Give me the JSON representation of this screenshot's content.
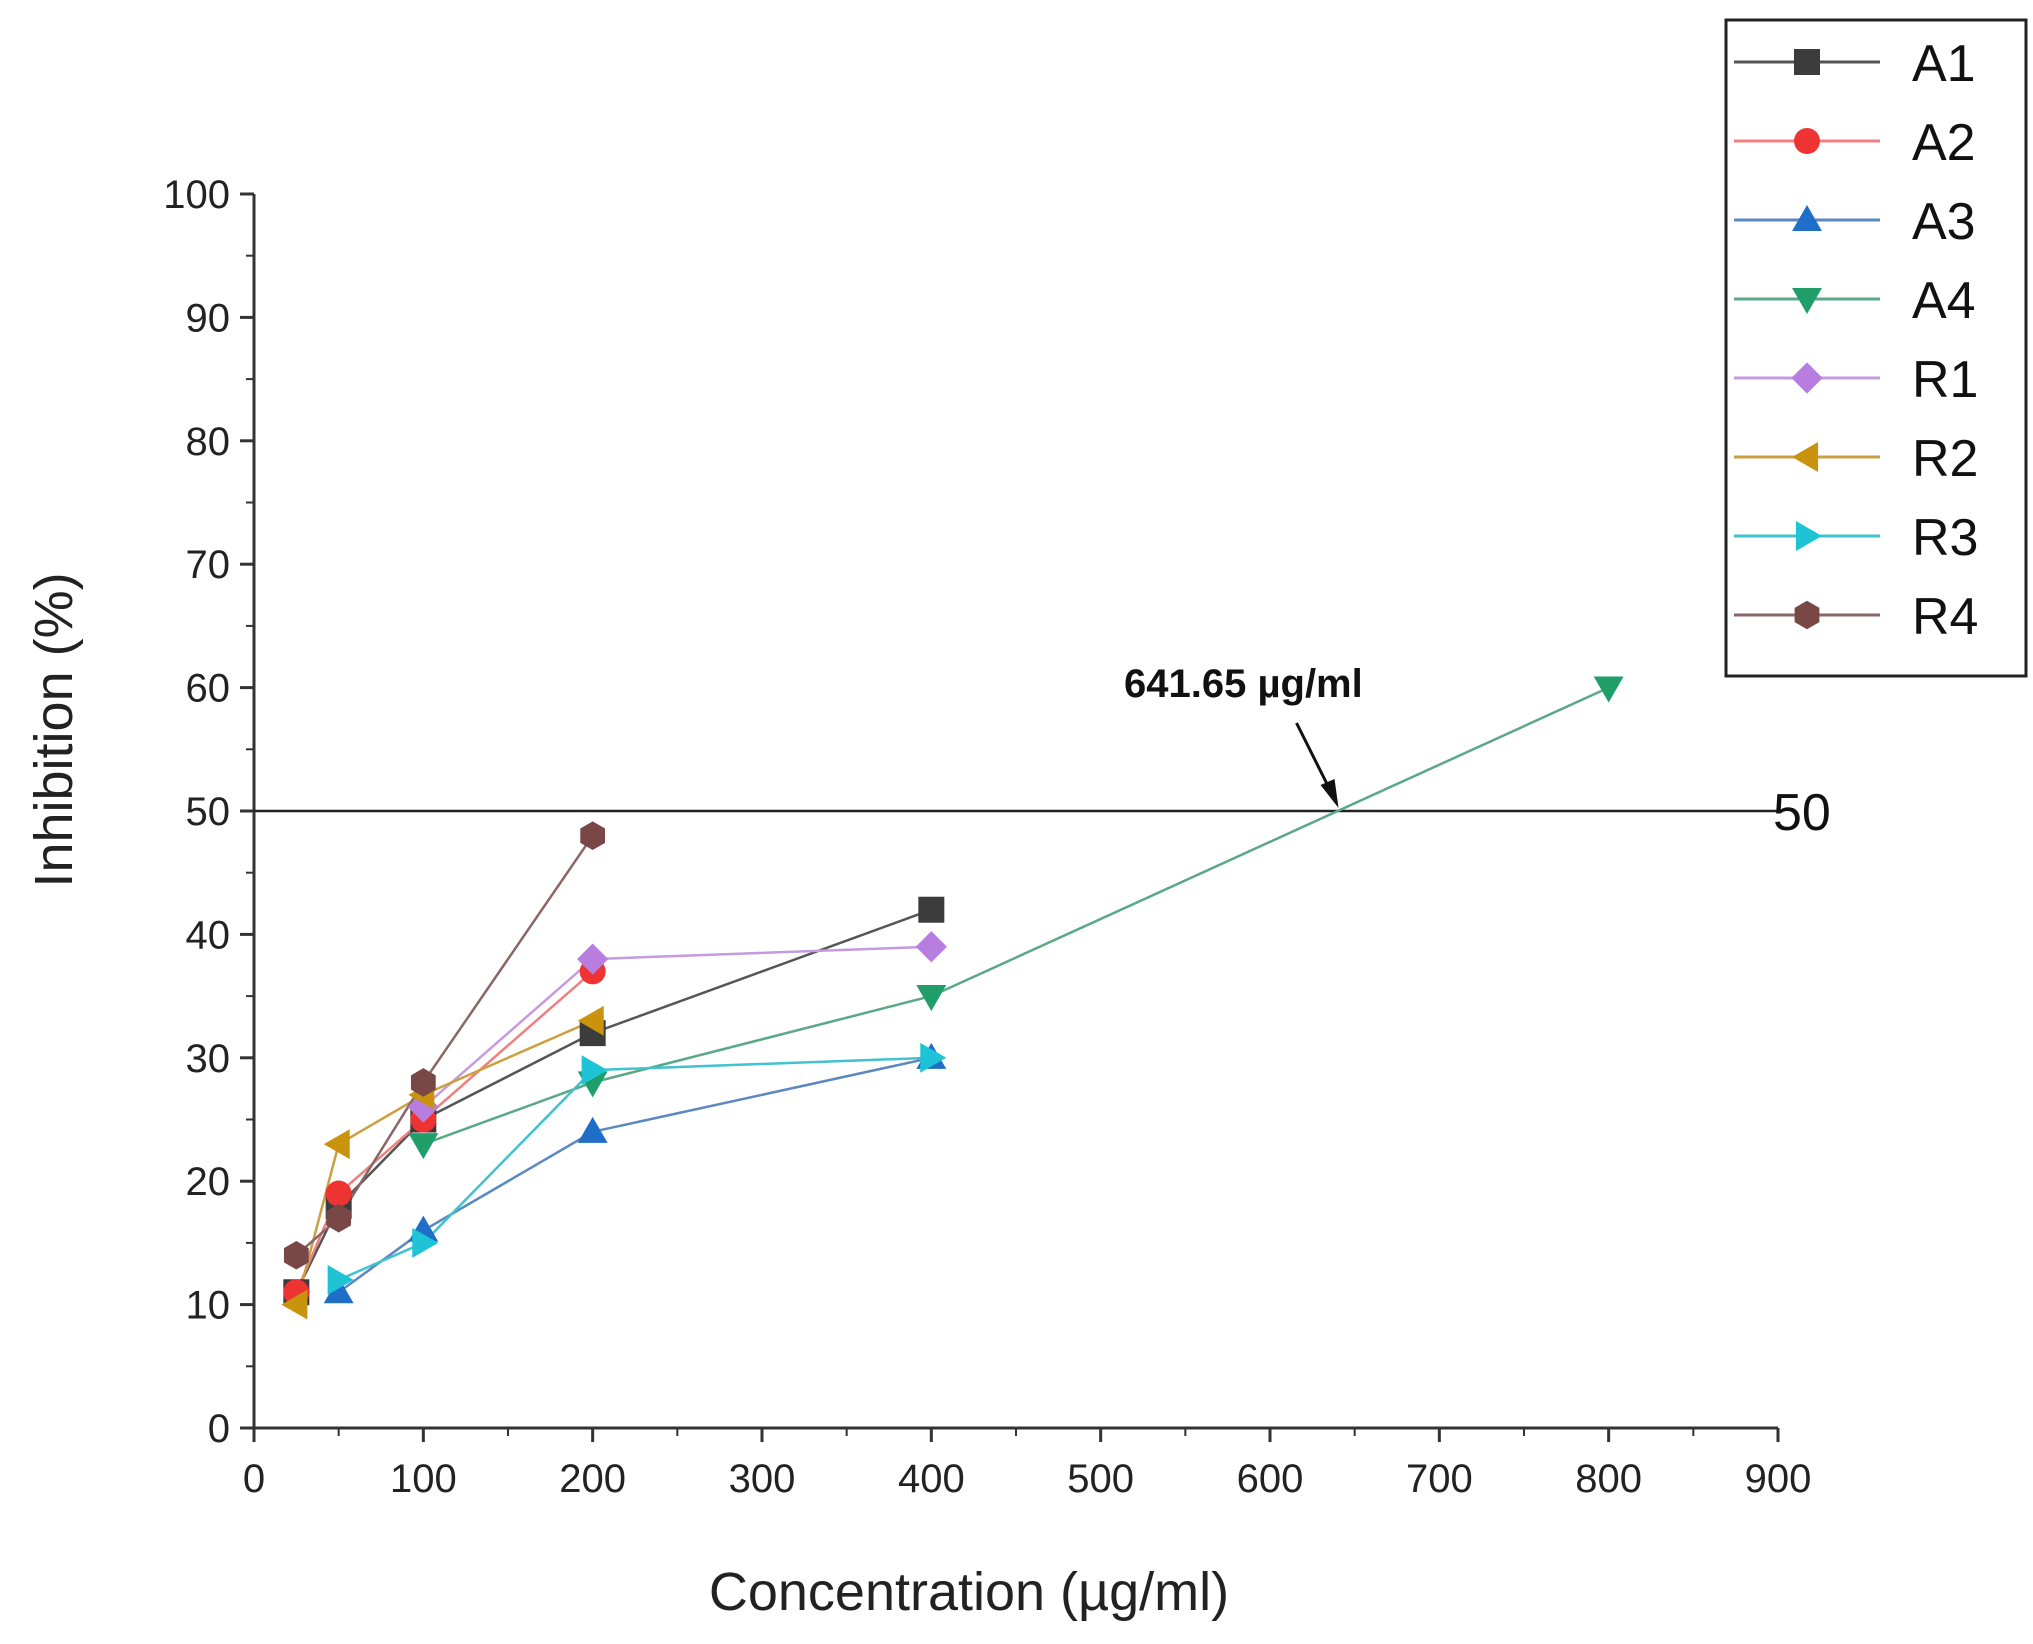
{
  "chart_data": {
    "type": "line",
    "title": "",
    "xlabel": "Concentration (µg/ml)",
    "ylabel": "Inhibition (%)",
    "xlim": [
      0,
      900
    ],
    "ylim": [
      0,
      100
    ],
    "x_ticks": [
      0,
      100,
      200,
      300,
      400,
      500,
      600,
      700,
      800,
      900
    ],
    "y_ticks": [
      0,
      10,
      20,
      30,
      40,
      50,
      60,
      70,
      80,
      90,
      100
    ],
    "grid": false,
    "legend_position": "top-right outside",
    "reference_line": {
      "y": 50,
      "label": "50",
      "color": "#222222"
    },
    "annotation": {
      "text": "641.65 µg/ml",
      "x": 641.65,
      "y": 50
    },
    "series": [
      {
        "name": "A1",
        "marker": "square",
        "color": "#3c3c3c",
        "line_color": "#555555",
        "x": [
          25,
          50,
          100,
          200,
          400
        ],
        "y": [
          11,
          18,
          25,
          32,
          42
        ]
      },
      {
        "name": "A2",
        "marker": "circle",
        "color": "#ee3333",
        "line_color": "#f08080",
        "x": [
          25,
          50,
          100,
          200
        ],
        "y": [
          11,
          19,
          25,
          37
        ]
      },
      {
        "name": "A3",
        "marker": "triangle-up",
        "color": "#1f6fc9",
        "line_color": "#5b88c0",
        "x": [
          50,
          100,
          200,
          400
        ],
        "y": [
          11,
          16,
          24,
          30
        ]
      },
      {
        "name": "A4",
        "marker": "triangle-down",
        "color": "#1f9e6a",
        "line_color": "#5aa884",
        "x": [
          100,
          200,
          400,
          800
        ],
        "y": [
          23,
          28,
          35,
          60
        ]
      },
      {
        "name": "R1",
        "marker": "diamond",
        "color": "#b77ee0",
        "line_color": "#c49ae0",
        "x": [
          100,
          200,
          400
        ],
        "y": [
          26,
          38,
          39
        ]
      },
      {
        "name": "R2",
        "marker": "triangle-left",
        "color": "#c9930e",
        "line_color": "#caa040",
        "x": [
          25,
          50,
          100,
          200
        ],
        "y": [
          10,
          23,
          27,
          33
        ]
      },
      {
        "name": "R3",
        "marker": "triangle-right",
        "color": "#1ec4d6",
        "line_color": "#40c2cf",
        "x": [
          50,
          100,
          200,
          400
        ],
        "y": [
          12,
          15,
          29,
          30
        ]
      },
      {
        "name": "R4",
        "marker": "hexagon",
        "color": "#7a4747",
        "line_color": "#8a6666",
        "x": [
          25,
          50,
          100,
          200
        ],
        "y": [
          14,
          17,
          28,
          48
        ]
      }
    ]
  }
}
